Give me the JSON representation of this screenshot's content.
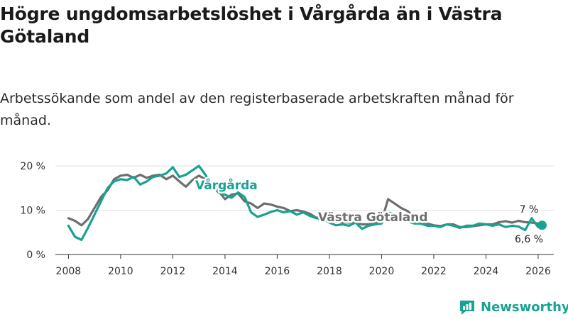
{
  "title": "Högre ungdomsarbetslöshet i Vårgårda än i Västra Götaland",
  "subtitle": "Arbetssökande som andel av den registerbaserade arbetskraften månad för månad.",
  "brand": "Newsworthy",
  "colors": {
    "vargarda": "#17a292",
    "vastra": "#6e6e6e",
    "text": "#1a1a1a",
    "grid": "#e2e2e2"
  },
  "chart_data": {
    "type": "line",
    "title": "Högre ungdomsarbetslöshet i Vårgårda än i Västra Götaland",
    "xlabel": "",
    "ylabel": "",
    "xlim": [
      2007.5,
      2026.6
    ],
    "ylim": [
      0,
      20
    ],
    "y_ticks": [
      0,
      10,
      20
    ],
    "y_tick_labels": [
      "0 %",
      "10 %",
      "20 %"
    ],
    "x_ticks": [
      2008,
      2010,
      2012,
      2014,
      2016,
      2018,
      2020,
      2022,
      2024,
      2026
    ],
    "x_tick_labels": [
      "2008",
      "2010",
      "2012",
      "2014",
      "2016",
      "2018",
      "2020",
      "2022",
      "2024",
      "2026"
    ],
    "series": [
      {
        "name": "Västra Götaland",
        "label": "Västra Götaland",
        "color": "#6e6e6e",
        "end_label": "7 %",
        "x": [
          2008.0,
          2008.25,
          2008.5,
          2008.75,
          2009.0,
          2009.25,
          2009.5,
          2009.75,
          2010.0,
          2010.25,
          2010.5,
          2010.75,
          2011.0,
          2011.25,
          2011.5,
          2011.75,
          2012.0,
          2012.25,
          2012.5,
          2012.75,
          2013.0,
          2013.25,
          2013.5,
          2013.75,
          2014.0,
          2014.25,
          2014.5,
          2014.75,
          2015.0,
          2015.25,
          2015.5,
          2015.75,
          2016.0,
          2016.25,
          2016.5,
          2016.75,
          2017.0,
          2017.25,
          2017.5,
          2017.75,
          2018.0,
          2018.25,
          2018.5,
          2018.75,
          2019.0,
          2019.25,
          2019.5,
          2019.75,
          2020.0,
          2020.25,
          2020.5,
          2020.75,
          2021.0,
          2021.25,
          2021.5,
          2021.75,
          2022.0,
          2022.25,
          2022.5,
          2022.75,
          2023.0,
          2023.25,
          2023.5,
          2023.75,
          2024.0,
          2024.25,
          2024.5,
          2024.75,
          2025.0,
          2025.25,
          2025.5,
          2025.75,
          2026.0,
          2026.15
        ],
        "values": [
          8.2,
          7.6,
          6.6,
          8.0,
          10.5,
          13.0,
          14.5,
          17.0,
          17.8,
          18.0,
          17.3,
          18.0,
          17.3,
          17.8,
          18.0,
          17.0,
          17.8,
          16.5,
          15.3,
          16.8,
          17.8,
          17.0,
          15.3,
          14.3,
          12.5,
          13.5,
          13.8,
          12.0,
          11.5,
          10.5,
          11.5,
          11.3,
          10.8,
          10.5,
          9.8,
          10.0,
          9.7,
          9.2,
          8.3,
          8.2,
          7.8,
          7.5,
          7.3,
          7.2,
          7.2,
          6.8,
          6.8,
          7.2,
          7.5,
          12.5,
          11.5,
          10.5,
          9.8,
          8.5,
          7.5,
          7.0,
          6.6,
          6.4,
          6.8,
          6.8,
          6.2,
          6.2,
          6.4,
          6.6,
          6.8,
          6.8,
          7.3,
          7.5,
          7.2,
          7.6,
          7.3,
          7.2,
          7.0,
          7.0
        ]
      },
      {
        "name": "Vårgårda",
        "label": "Vårgårda",
        "color": "#17a292",
        "end_label": "6,6 %",
        "x": [
          2008.0,
          2008.25,
          2008.5,
          2008.75,
          2009.0,
          2009.25,
          2009.5,
          2009.75,
          2010.0,
          2010.25,
          2010.5,
          2010.75,
          2011.0,
          2011.25,
          2011.5,
          2011.75,
          2012.0,
          2012.25,
          2012.5,
          2012.75,
          2013.0,
          2013.25,
          2013.5,
          2013.75,
          2014.0,
          2014.25,
          2014.5,
          2014.75,
          2015.0,
          2015.25,
          2015.5,
          2015.75,
          2016.0,
          2016.25,
          2016.5,
          2016.75,
          2017.0,
          2017.25,
          2017.5,
          2017.75,
          2018.0,
          2018.25,
          2018.5,
          2018.75,
          2019.0,
          2019.25,
          2019.5,
          2019.75,
          2020.0,
          2020.25,
          2020.5,
          2020.75,
          2021.0,
          2021.25,
          2021.5,
          2021.75,
          2022.0,
          2022.25,
          2022.5,
          2022.75,
          2023.0,
          2023.25,
          2023.5,
          2023.75,
          2024.0,
          2024.25,
          2024.5,
          2024.75,
          2025.0,
          2025.25,
          2025.5,
          2025.75,
          2026.0,
          2026.15
        ],
        "values": [
          6.5,
          4.0,
          3.3,
          6.0,
          9.0,
          12.0,
          15.0,
          16.5,
          17.0,
          16.8,
          17.5,
          15.8,
          16.5,
          17.5,
          17.8,
          18.3,
          19.7,
          17.5,
          18.0,
          19.0,
          20.0,
          18.0,
          15.5,
          14.0,
          13.5,
          12.8,
          14.0,
          13.0,
          9.5,
          8.5,
          9.0,
          9.6,
          10.0,
          9.5,
          9.8,
          9.0,
          9.5,
          8.7,
          8.2,
          8.0,
          7.2,
          6.6,
          6.8,
          6.5,
          7.2,
          5.8,
          6.5,
          6.8,
          7.0,
          9.5,
          9.0,
          8.0,
          7.5,
          7.0,
          7.0,
          6.5,
          6.5,
          6.2,
          6.8,
          6.5,
          6.0,
          6.5,
          6.5,
          7.0,
          6.8,
          6.5,
          6.8,
          6.2,
          6.5,
          6.3,
          5.5,
          8.2,
          6.2,
          6.6
        ]
      }
    ],
    "legend": "inline labels on lines"
  }
}
